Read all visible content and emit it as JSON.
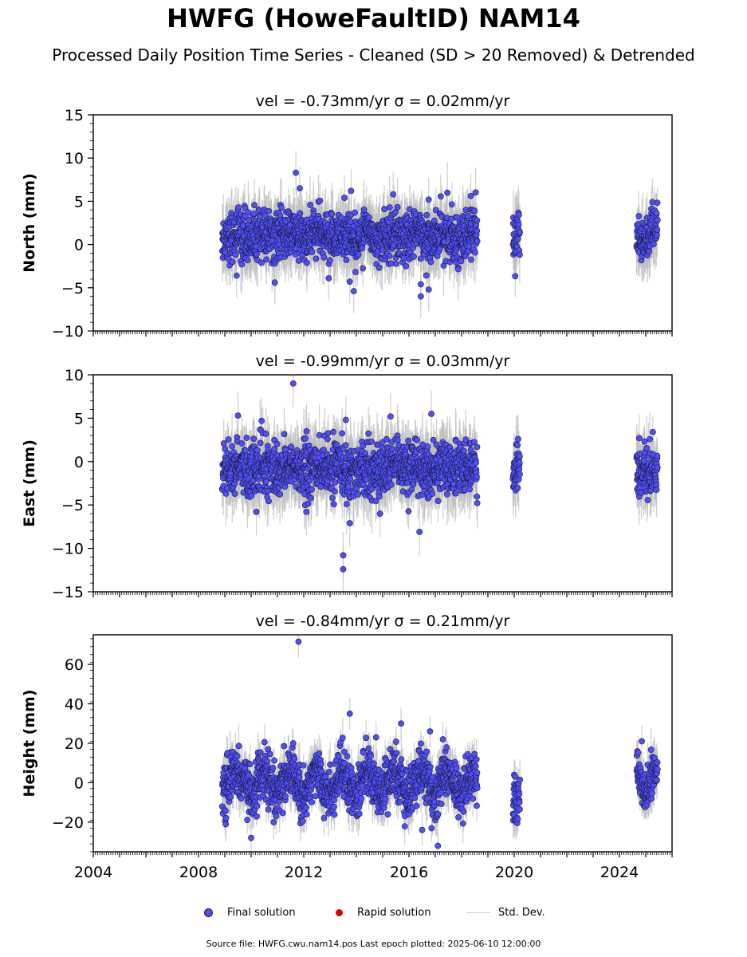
{
  "title": "HWFG (HoweFaultID) NAM14",
  "subtitle": "Processed Daily Position Time Series - Cleaned (SD > 20 Removed) & Detrended",
  "footer": "Source file: HWFG.cwu.nam14.pos  Last epoch plotted: 2025-06-10 12:00:00",
  "legend": {
    "final": "Final solution",
    "rapid": "Rapid solution",
    "stddev": "Std. Dev."
  },
  "colors": {
    "final": "#4f4ff5",
    "final_edge": "#1a1a40",
    "rapid": "#e00000",
    "stddev": "#bdbdbd"
  },
  "chart_data": [
    {
      "type": "scatter",
      "name": "north",
      "title": "vel = -0.73mm/yr   σ = 0.02mm/yr",
      "ylabel": "North (mm)",
      "xlim": [
        2004,
        2026
      ],
      "ylim": [
        -10,
        15
      ],
      "yticks": [
        -10,
        -5,
        0,
        5,
        10,
        15
      ],
      "ytick_labels": [
        "−10",
        "−5",
        "0",
        "5",
        "10",
        "15"
      ],
      "xticks": [
        2004,
        2008,
        2012,
        2016,
        2020,
        2024
      ],
      "xtick_labels": [],
      "data_segments": [
        [
          2008.9,
          2018.6
        ],
        [
          2019.95,
          2020.22
        ],
        [
          2024.65,
          2025.45
        ]
      ],
      "noise_sd": 1.4,
      "errbar_len": 2.8,
      "center": 1.0,
      "trend": 0,
      "seasonal": 0.3,
      "outliers": [
        {
          "x": 2011.7,
          "y": 8.3
        },
        {
          "x": 2011.85,
          "y": 6.5
        },
        {
          "x": 2009.45,
          "y": -3.6
        },
        {
          "x": 2010.9,
          "y": -4.4
        },
        {
          "x": 2012.95,
          "y": -3.9
        },
        {
          "x": 2013.55,
          "y": 5.4
        },
        {
          "x": 2013.75,
          "y": -4.3
        },
        {
          "x": 2013.8,
          "y": 6.2
        },
        {
          "x": 2013.9,
          "y": -5.4
        },
        {
          "x": 2015.4,
          "y": 5.8
        },
        {
          "x": 2016.45,
          "y": -4.6
        },
        {
          "x": 2016.45,
          "y": -6.0
        },
        {
          "x": 2016.75,
          "y": -5.2
        },
        {
          "x": 2016.75,
          "y": 5.2
        },
        {
          "x": 2018.35,
          "y": 5.6
        }
      ]
    },
    {
      "type": "scatter",
      "name": "east",
      "title": "vel = -0.99mm/yr   σ = 0.03mm/yr",
      "ylabel": "East (mm)",
      "xlim": [
        2004,
        2026
      ],
      "ylim": [
        -15,
        10
      ],
      "yticks": [
        -15,
        -10,
        -5,
        0,
        5,
        10
      ],
      "ytick_labels": [
        "−15",
        "−10",
        "−5",
        "0",
        "5",
        "10"
      ],
      "xticks": [
        2004,
        2008,
        2012,
        2016,
        2020,
        2024
      ],
      "xtick_labels": [],
      "data_segments": [
        [
          2008.9,
          2018.6
        ],
        [
          2019.95,
          2020.22
        ],
        [
          2024.65,
          2025.45
        ]
      ],
      "noise_sd": 1.5,
      "errbar_len": 3.0,
      "center": -0.8,
      "trend": 0,
      "seasonal": 0.3,
      "outliers": [
        {
          "x": 2011.6,
          "y": 9.0
        },
        {
          "x": 2009.5,
          "y": 5.3
        },
        {
          "x": 2010.4,
          "y": 4.7
        },
        {
          "x": 2010.2,
          "y": -5.8
        },
        {
          "x": 2012.1,
          "y": -5.8
        },
        {
          "x": 2013.5,
          "y": -10.8
        },
        {
          "x": 2013.5,
          "y": -12.4
        },
        {
          "x": 2013.75,
          "y": -7.1
        },
        {
          "x": 2013.6,
          "y": 4.8
        },
        {
          "x": 2015.3,
          "y": 5.2
        },
        {
          "x": 2016.4,
          "y": -8.1
        },
        {
          "x": 2016.85,
          "y": 5.5
        },
        {
          "x": 2014.9,
          "y": -6.0
        },
        {
          "x": 2024.75,
          "y": 2.7
        },
        {
          "x": 2020.15,
          "y": 2.6
        }
      ]
    },
    {
      "type": "scatter",
      "name": "height",
      "title": "vel = -0.84mm/yr   σ = 0.21mm/yr",
      "ylabel": "Height (mm)",
      "xlim": [
        2004,
        2026
      ],
      "ylim": [
        -35,
        75
      ],
      "yticks": [
        -20,
        0,
        20,
        40,
        60
      ],
      "ytick_labels": [
        "−20",
        "0",
        "20",
        "40",
        "60"
      ],
      "xticks": [
        2004,
        2008,
        2012,
        2016,
        2020,
        2024
      ],
      "xtick_labels": [
        "2004",
        "2008",
        "2012",
        "2016",
        "2020",
        "2024"
      ],
      "data_segments": [
        [
          2008.9,
          2018.6
        ],
        [
          2019.95,
          2020.22
        ],
        [
          2024.65,
          2025.45
        ]
      ],
      "noise_sd": 6.0,
      "errbar_len": 9.0,
      "center": 0,
      "trend": 0,
      "seasonal": 6.0,
      "outliers": [
        {
          "x": 2011.8,
          "y": 71.5
        },
        {
          "x": 2013.75,
          "y": 35.0
        },
        {
          "x": 2010.0,
          "y": -28.0
        },
        {
          "x": 2015.7,
          "y": 30.0
        },
        {
          "x": 2016.8,
          "y": 26.0
        },
        {
          "x": 2016.5,
          "y": -24.0
        },
        {
          "x": 2017.1,
          "y": -32.0
        },
        {
          "x": 2014.75,
          "y": 23.0
        },
        {
          "x": 2024.85,
          "y": 21.0
        },
        {
          "x": 2011.6,
          "y": 20.0
        },
        {
          "x": 2009.1,
          "y": 15.0
        }
      ]
    }
  ]
}
